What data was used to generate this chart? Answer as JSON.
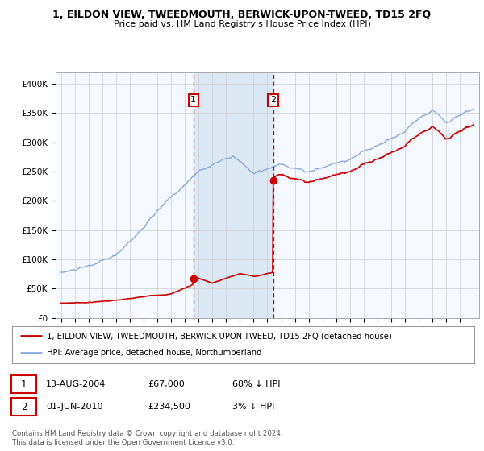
{
  "title": "1, EILDON VIEW, TWEEDMOUTH, BERWICK-UPON-TWEED, TD15 2FQ",
  "subtitle": "Price paid vs. HM Land Registry's House Price Index (HPI)",
  "ylim": [
    0,
    420000
  ],
  "yticks": [
    0,
    50000,
    100000,
    150000,
    200000,
    250000,
    300000,
    350000,
    400000
  ],
  "ytick_labels": [
    "£0",
    "£50K",
    "£100K",
    "£150K",
    "£200K",
    "£250K",
    "£300K",
    "£350K",
    "£400K"
  ],
  "sale1_date_num": 2004.62,
  "sale1_price": 67000,
  "sale2_date_num": 2010.42,
  "sale2_price": 234500,
  "sale1_label": "1",
  "sale2_label": "2",
  "red_color": "#cc0000",
  "blue_color": "#88aadd",
  "shade_color": "#dde8f5",
  "legend_line1": "1, EILDON VIEW, TWEEDMOUTH, BERWICK-UPON-TWEED, TD15 2FQ (detached house)",
  "legend_line2": "HPI: Average price, detached house, Northumberland",
  "table_row1": [
    "1",
    "13-AUG-2004",
    "£67,000",
    "68% ↓ HPI"
  ],
  "table_row2": [
    "2",
    "01-JUN-2010",
    "£234,500",
    "3% ↓ HPI"
  ],
  "footnote": "Contains HM Land Registry data © Crown copyright and database right 2024.\nThis data is licensed under the Open Government Licence v3.0.",
  "background_color": "#ffffff",
  "plot_bg_color": "#f5f8ff",
  "grid_color": "#cccccc"
}
